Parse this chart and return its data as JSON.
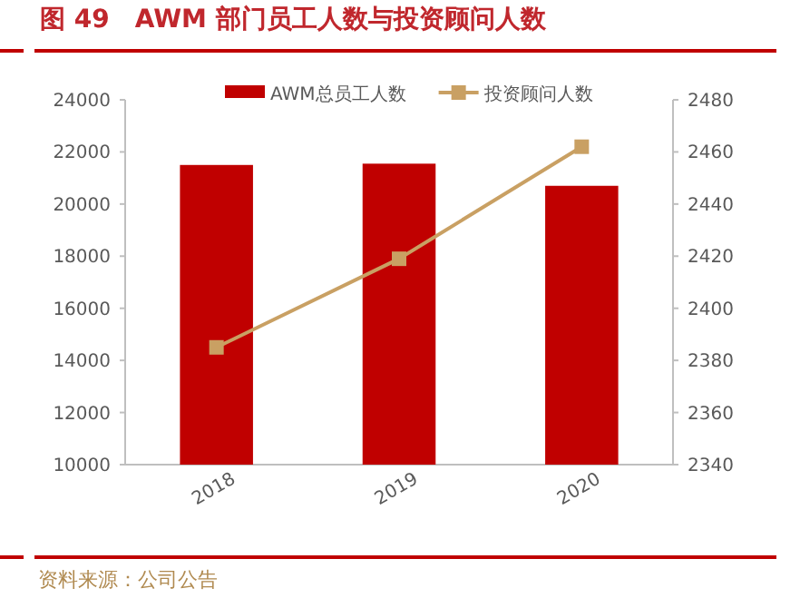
{
  "chart_data": {
    "type": "bar",
    "title": "图 49　AWM 部门员工人数与投资顾问人数",
    "categories": [
      "2018",
      "2019",
      "2020"
    ],
    "series": [
      {
        "name": "AWM总员工人数",
        "color": "#c00000",
        "values": [
          21500,
          21550,
          20700
        ]
      },
      {
        "name": "投资顾问人数",
        "type": "line",
        "axis": "y2",
        "color": "#c9a063",
        "marker": "square",
        "values": [
          2385,
          2419,
          2462
        ]
      }
    ],
    "ylim": [
      10000,
      24000
    ],
    "yticks": [
      10000,
      12000,
      14000,
      16000,
      18000,
      20000,
      22000,
      24000
    ],
    "y2lim": [
      2340,
      2480
    ],
    "y2ticks": [
      2340,
      2360,
      2380,
      2400,
      2420,
      2440,
      2460,
      2480
    ],
    "legend": "top",
    "grid": false,
    "annotations": [
      "资料来源：公司公告"
    ]
  }
}
